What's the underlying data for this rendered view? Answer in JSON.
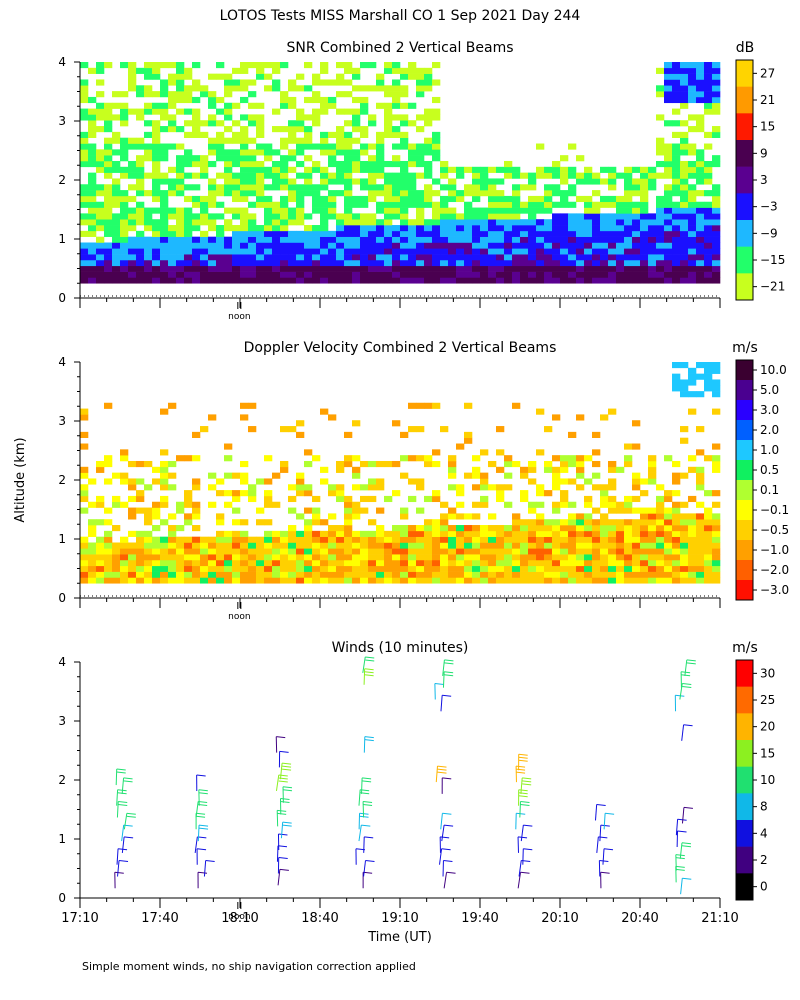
{
  "figure": {
    "title": "LOTOS Tests MISS Marshall CO   1 Sep 2021 Day 244",
    "ylabel": "Altitude (km)",
    "xlabel": "Time (UT)",
    "footnote": "Simple moment winds, no ship navigation correction applied",
    "noon_label": "noon"
  },
  "chart_data": [
    {
      "type": "heatmap",
      "title": "SNR Combined 2 Vertical Beams",
      "units": "dB",
      "ylim": [
        0,
        4
      ],
      "yticks": [
        "0",
        "1",
        "2",
        "3",
        "4"
      ],
      "xlim_minutes_utc": [
        1030,
        1270
      ],
      "colorbar_labels": [
        "27",
        "21",
        "15",
        "9",
        "3",
        "−3",
        "−9",
        "−15",
        "−21"
      ],
      "colorbar_colors": [
        "#ffd400",
        "#ff9a00",
        "#ff1a00",
        "#4a0050",
        "#5a0090",
        "#1a10ff",
        "#1eb8ff",
        "#22ff6a",
        "#c8ff1e"
      ],
      "noon_mark": "yes",
      "description_layers": [
        {
          "range_km": [
            0.25,
            0.45
          ],
          "color": "#4a0050"
        },
        {
          "range_km": [
            0.45,
            0.9
          ],
          "color": "#1a10ff"
        },
        {
          "range_km": [
            0.9,
            1.2
          ],
          "color": "#1eb8ff"
        },
        {
          "range_km": [
            1.2,
            2.6
          ],
          "color": "#22ff6a"
        },
        {
          "range_km": [
            2.6,
            4.0
          ],
          "color": "#c8ff1e"
        }
      ]
    },
    {
      "type": "heatmap",
      "title": "Doppler Velocity Combined 2 Vertical Beams",
      "units": "m/s",
      "ylim": [
        0,
        4
      ],
      "yticks": [
        "0",
        "1",
        "2",
        "3",
        "4"
      ],
      "xlim_minutes_utc": [
        1030,
        1270
      ],
      "colorbar_labels": [
        "10.0",
        "5.0",
        "3.0",
        "2.0",
        "1.0",
        "0.5",
        "0.1",
        "−0.1",
        "−0.5",
        "−1.0",
        "−2.0",
        "−3.0"
      ],
      "colorbar_colors": [
        "#3a0030",
        "#4a0090",
        "#2a00ff",
        "#0060ff",
        "#1ec8ff",
        "#10f060",
        "#b0ff30",
        "#ffff00",
        "#ffd000",
        "#ffa000",
        "#ff6000",
        "#ff1000"
      ],
      "noon_mark": "yes"
    },
    {
      "type": "scatter",
      "title": "Winds (10 minutes)",
      "units": "m/s",
      "ylim": [
        0,
        4
      ],
      "yticks": [
        "0",
        "1",
        "2",
        "3",
        "4"
      ],
      "xticks": [
        "17:10",
        "17:40",
        "18:10",
        "18:40",
        "19:10",
        "19:40",
        "20:10",
        "20:40",
        "21:10"
      ],
      "xlim_minutes_utc": [
        1030,
        1270
      ],
      "colorbar_labels": [
        "30",
        "25",
        "20",
        "15",
        "10",
        "8",
        "4",
        "2",
        "0"
      ],
      "colorbar_colors": [
        "#ff0000",
        "#ff6a00",
        "#ffb400",
        "#8cf020",
        "#20e070",
        "#10b8e8",
        "#1010e0",
        "#400080",
        "#000000"
      ],
      "profile_times_utc": [
        "17:25",
        "17:55",
        "18:25",
        "18:55",
        "19:25",
        "19:55",
        "20:25",
        "20:55"
      ],
      "profiles": [
        {
          "time": "17:25",
          "heights_km": [
            0.3,
            0.5,
            0.7,
            0.9,
            1.1,
            1.3,
            1.5,
            1.7,
            1.9,
            2.05
          ],
          "speeds_ms": [
            3,
            4,
            5,
            6,
            8,
            10,
            12,
            14,
            13,
            10
          ]
        },
        {
          "time": "17:55",
          "heights_km": [
            0.3,
            0.5,
            0.7,
            0.9,
            1.1,
            1.3,
            1.5,
            1.7,
            1.95
          ],
          "speeds_ms": [
            3,
            4,
            5,
            7,
            9,
            10,
            11,
            10,
            4
          ]
        },
        {
          "time": "18:25",
          "heights_km": [
            0.35,
            0.55,
            0.75,
            0.95,
            1.15,
            1.35,
            1.55,
            1.75,
            1.95,
            2.15,
            2.35,
            2.6
          ],
          "speeds_ms": [
            3,
            4,
            5,
            7,
            9,
            10,
            12,
            14,
            16,
            15,
            5,
            3
          ]
        },
        {
          "time": "18:55",
          "heights_km": [
            0.3,
            0.5,
            0.7,
            0.9,
            1.1,
            1.3,
            1.5,
            1.7,
            1.9,
            2.6,
            3.75,
            3.95
          ],
          "speeds_ms": [
            3,
            4,
            5,
            6,
            8,
            9,
            10,
            11,
            10,
            9,
            16,
            12
          ]
        },
        {
          "time": "19:25",
          "heights_km": [
            0.3,
            0.5,
            0.7,
            0.9,
            1.1,
            1.3,
            1.9,
            2.1,
            3.3,
            3.5,
            3.7,
            3.9
          ],
          "speeds_ms": [
            3,
            4,
            5,
            6,
            7,
            8,
            3,
            22,
            6,
            8,
            10,
            14
          ]
        },
        {
          "time": "19:55",
          "heights_km": [
            0.3,
            0.5,
            0.7,
            0.9,
            1.1,
            1.3,
            1.5,
            1.7,
            1.9,
            2.1,
            2.3
          ],
          "speeds_ms": [
            3,
            4,
            5,
            6,
            7,
            8,
            14,
            17,
            18,
            20,
            22
          ]
        },
        {
          "time": "20:25",
          "heights_km": [
            0.3,
            0.5,
            0.7,
            0.9,
            1.1,
            1.3,
            1.45
          ],
          "speeds_ms": [
            3,
            4,
            5,
            6,
            7,
            8,
            6
          ]
        },
        {
          "time": "20:55",
          "heights_km": [
            0.2,
            0.4,
            0.6,
            0.8,
            1.0,
            1.2,
            1.4,
            2.8,
            3.3,
            3.5,
            3.7,
            3.9
          ],
          "speeds_ms": [
            8,
            10,
            12,
            14,
            6,
            4,
            3,
            4,
            8,
            10,
            12,
            14
          ]
        }
      ]
    }
  ]
}
